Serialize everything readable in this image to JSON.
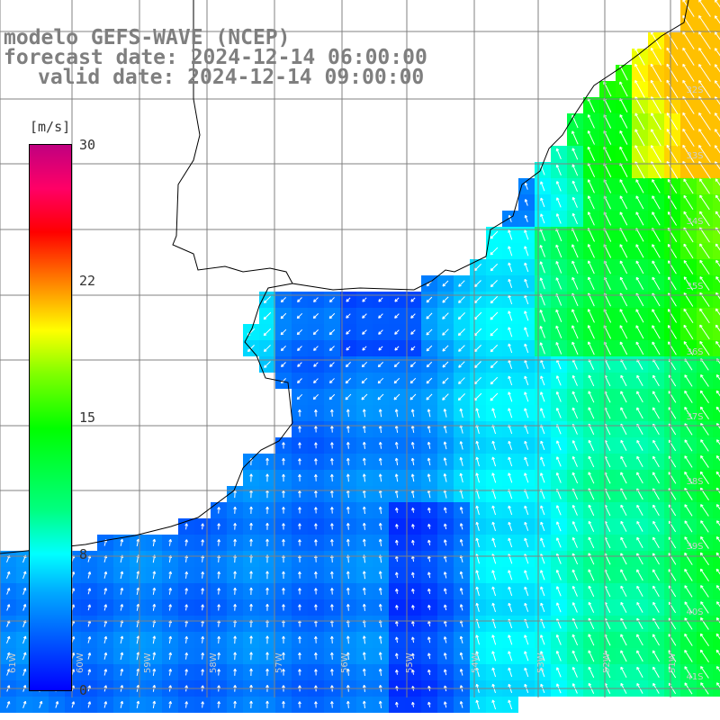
{
  "title": {
    "line1": "modelo GEFS-WAVE (NCEP)",
    "line2": "forecast date: 2024-12-14 06:00:00",
    "line3": "valid date: 2024-12-14 09:00:00"
  },
  "colorbar": {
    "units": "[m/s]",
    "ticks": [
      "30",
      "22",
      "15",
      "8",
      "0"
    ],
    "tick_values": [
      30,
      22,
      15,
      8,
      0
    ],
    "min": 0,
    "max": 30
  },
  "lat_labels": [
    "32S",
    "33S",
    "34S",
    "35S",
    "36S",
    "37S",
    "38S",
    "39S",
    "40S",
    "41S"
  ],
  "lon_labels": [
    "61W",
    "60W",
    "59W",
    "58W",
    "57W",
    "56W",
    "55W",
    "54W",
    "53W",
    "52W",
    "51W"
  ],
  "colors": {
    "land": "#ffffff",
    "grid": "#808080",
    "coast": "#000000",
    "arrow": "#ffffff"
  }
}
